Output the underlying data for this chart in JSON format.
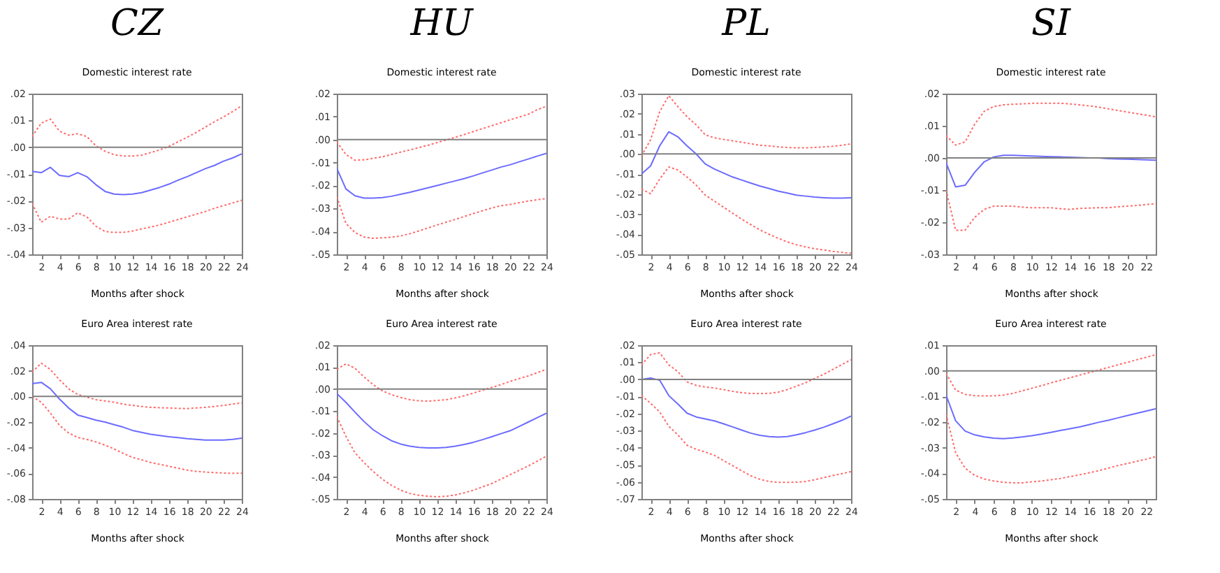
{
  "chart_data": [
    {
      "type": "line",
      "title": "CZ",
      "subtitle": "Domestic interest rate",
      "xlabel": "Months after shock",
      "x": [
        1,
        2,
        3,
        4,
        5,
        6,
        7,
        8,
        9,
        10,
        11,
        12,
        13,
        14,
        15,
        16,
        17,
        18,
        19,
        20,
        21,
        22,
        23,
        24
      ],
      "xlim": [
        1,
        24
      ],
      "xticks": [
        2,
        4,
        6,
        8,
        10,
        12,
        14,
        16,
        18,
        20,
        22,
        24
      ],
      "ylim": [
        -0.04,
        0.02
      ],
      "yticks": [
        {
          "value": -0.04,
          "label": "-.04"
        },
        {
          "value": -0.03,
          "label": "-.03"
        },
        {
          "value": -0.02,
          "label": "-.02"
        },
        {
          "value": -0.01,
          "label": "-.01"
        },
        {
          "value": 0,
          "label": ".00"
        },
        {
          "value": 0.01,
          "label": ".01"
        },
        {
          "value": 0.02,
          "label": ".02"
        }
      ],
      "grid": false,
      "ref_lines": [
        {
          "axis": "y",
          "value": 0,
          "color": "#808080"
        }
      ],
      "series": [
        {
          "color": "#ff6b6b",
          "line_style": "dotted",
          "values": [
            0.004,
            0.009,
            0.0105,
            0.006,
            0.0045,
            0.005,
            0.004,
            0.0005,
            -0.0015,
            -0.0028,
            -0.0033,
            -0.0033,
            -0.003,
            -0.002,
            -0.001,
            0.0003,
            0.002,
            0.0037,
            0.0055,
            0.0075,
            0.0095,
            0.0113,
            0.0133,
            0.0155
          ]
        },
        {
          "color": "#6b6bff",
          "line_style": "solid",
          "values": [
            -0.009,
            -0.0095,
            -0.0075,
            -0.0105,
            -0.011,
            -0.0095,
            -0.011,
            -0.014,
            -0.0165,
            -0.0175,
            -0.0177,
            -0.0175,
            -0.017,
            -0.016,
            -0.015,
            -0.0138,
            -0.0123,
            -0.011,
            -0.0095,
            -0.008,
            -0.0068,
            -0.0052,
            -0.004,
            -0.0025
          ]
        },
        {
          "color": "#ff6b6b",
          "line_style": "dotted",
          "values": [
            -0.021,
            -0.028,
            -0.0258,
            -0.0268,
            -0.0268,
            -0.0245,
            -0.026,
            -0.0295,
            -0.0315,
            -0.0318,
            -0.0318,
            -0.0313,
            -0.0305,
            -0.0298,
            -0.029,
            -0.028,
            -0.027,
            -0.026,
            -0.025,
            -0.024,
            -0.0228,
            -0.0218,
            -0.0208,
            -0.0198
          ]
        }
      ]
    },
    {
      "type": "line",
      "title": "HU",
      "subtitle": "Domestic interest rate",
      "xlabel": "Months after shock",
      "x": [
        1,
        2,
        3,
        4,
        5,
        6,
        7,
        8,
        9,
        10,
        11,
        12,
        13,
        14,
        15,
        16,
        17,
        18,
        19,
        20,
        21,
        22,
        23,
        24
      ],
      "xlim": [
        1,
        24
      ],
      "xticks": [
        2,
        4,
        6,
        8,
        10,
        12,
        14,
        16,
        18,
        20,
        22,
        24
      ],
      "ylim": [
        -0.05,
        0.02
      ],
      "yticks": [
        {
          "value": -0.05,
          "label": "-.05"
        },
        {
          "value": -0.04,
          "label": "-.04"
        },
        {
          "value": -0.03,
          "label": "-.03"
        },
        {
          "value": -0.02,
          "label": "-.02"
        },
        {
          "value": -0.01,
          "label": "-.01"
        },
        {
          "value": 0,
          "label": ".00"
        },
        {
          "value": 0.01,
          "label": ".01"
        },
        {
          "value": 0.02,
          "label": ".02"
        }
      ],
      "grid": false,
      "ref_lines": [
        {
          "axis": "y",
          "value": 0,
          "color": "#808080"
        }
      ],
      "series": [
        {
          "color": "#ff6b6b",
          "line_style": "dotted",
          "values": [
            -0.001,
            -0.0065,
            -0.009,
            -0.0088,
            -0.0082,
            -0.0075,
            -0.0065,
            -0.0055,
            -0.0045,
            -0.0035,
            -0.0025,
            -0.0013,
            -0.0002,
            0.001,
            0.0022,
            0.0035,
            0.0048,
            0.006,
            0.0073,
            0.0086,
            0.0098,
            0.011,
            0.013,
            0.0145
          ]
        },
        {
          "color": "#6b6bff",
          "line_style": "solid",
          "values": [
            -0.0125,
            -0.0215,
            -0.0245,
            -0.0255,
            -0.0255,
            -0.0253,
            -0.0247,
            -0.0238,
            -0.023,
            -0.022,
            -0.021,
            -0.02,
            -0.019,
            -0.018,
            -0.017,
            -0.0158,
            -0.0145,
            -0.0133,
            -0.012,
            -0.011,
            -0.0097,
            -0.0085,
            -0.0072,
            -0.006
          ]
        },
        {
          "color": "#ff6b6b",
          "line_style": "dotted",
          "values": [
            -0.025,
            -0.0365,
            -0.0405,
            -0.0425,
            -0.043,
            -0.0428,
            -0.0425,
            -0.042,
            -0.041,
            -0.0398,
            -0.0385,
            -0.0372,
            -0.036,
            -0.0348,
            -0.0335,
            -0.0322,
            -0.031,
            -0.0298,
            -0.0288,
            -0.0283,
            -0.0275,
            -0.0268,
            -0.0262,
            -0.0257
          ]
        }
      ]
    },
    {
      "type": "line",
      "title": "PL",
      "subtitle": "Domestic interest rate",
      "xlabel": "Months after shock",
      "x": [
        1,
        2,
        3,
        4,
        5,
        6,
        7,
        8,
        9,
        10,
        11,
        12,
        13,
        14,
        15,
        16,
        17,
        18,
        19,
        20,
        21,
        22,
        23,
        24
      ],
      "xlim": [
        1,
        24
      ],
      "xticks": [
        2,
        4,
        6,
        8,
        10,
        12,
        14,
        16,
        18,
        20,
        22,
        24
      ],
      "ylim": [
        -0.05,
        0.03
      ],
      "yticks": [
        {
          "value": -0.05,
          "label": "-.05"
        },
        {
          "value": -0.04,
          "label": "-.04"
        },
        {
          "value": -0.03,
          "label": "-.03"
        },
        {
          "value": -0.02,
          "label": "-.02"
        },
        {
          "value": -0.01,
          "label": "-.01"
        },
        {
          "value": 0,
          "label": ".00"
        },
        {
          "value": 0.01,
          "label": ".01"
        },
        {
          "value": 0.02,
          "label": ".02"
        },
        {
          "value": 0.03,
          "label": ".03"
        }
      ],
      "grid": false,
      "ref_lines": [
        {
          "axis": "y",
          "value": 0,
          "color": "#808080"
        }
      ],
      "series": [
        {
          "color": "#ff6b6b",
          "line_style": "dotted",
          "values": [
            -0.001,
            0.007,
            0.021,
            0.029,
            0.0235,
            0.0185,
            0.0145,
            0.0095,
            0.008,
            0.0072,
            0.0065,
            0.0058,
            0.005,
            0.0043,
            0.004,
            0.0035,
            0.0032,
            0.003,
            0.003,
            0.0032,
            0.0035,
            0.0038,
            0.0043,
            0.005
          ]
        },
        {
          "color": "#6b6bff",
          "line_style": "solid",
          "values": [
            -0.01,
            -0.006,
            0.004,
            0.011,
            0.0085,
            0.004,
            0.0,
            -0.005,
            -0.0075,
            -0.0095,
            -0.0115,
            -0.013,
            -0.0145,
            -0.016,
            -0.0172,
            -0.0185,
            -0.0195,
            -0.0205,
            -0.021,
            -0.0215,
            -0.0218,
            -0.022,
            -0.022,
            -0.0218
          ]
        },
        {
          "color": "#ff6b6b",
          "line_style": "dotted",
          "values": [
            -0.0175,
            -0.0198,
            -0.0125,
            -0.0065,
            -0.008,
            -0.0115,
            -0.0155,
            -0.0205,
            -0.0235,
            -0.0265,
            -0.0295,
            -0.0325,
            -0.0352,
            -0.0378,
            -0.04,
            -0.042,
            -0.0438,
            -0.0452,
            -0.0463,
            -0.0472,
            -0.0478,
            -0.0485,
            -0.049,
            -0.0495
          ]
        }
      ]
    },
    {
      "type": "line",
      "title": "SI",
      "subtitle": "Domestic interest rate",
      "xlabel": "Months after shock",
      "x": [
        1,
        2,
        3,
        4,
        5,
        6,
        7,
        8,
        9,
        10,
        11,
        12,
        13,
        14,
        15,
        16,
        17,
        18,
        19,
        20,
        21,
        22,
        23
      ],
      "xlim": [
        1,
        23
      ],
      "xticks": [
        2,
        4,
        6,
        8,
        10,
        12,
        14,
        16,
        18,
        20,
        22
      ],
      "ylim": [
        -0.03,
        0.02
      ],
      "yticks": [
        {
          "value": -0.03,
          "label": "-.03"
        },
        {
          "value": -0.02,
          "label": "-.02"
        },
        {
          "value": -0.01,
          "label": "-.01"
        },
        {
          "value": 0,
          "label": ".00"
        },
        {
          "value": 0.01,
          "label": ".01"
        },
        {
          "value": 0.02,
          "label": ".02"
        }
      ],
      "grid": false,
      "ref_lines": [
        {
          "axis": "y",
          "value": 0,
          "color": "#808080"
        }
      ],
      "series": [
        {
          "color": "#ff6b6b",
          "line_style": "dotted",
          "values": [
            0.007,
            0.004,
            0.005,
            0.0105,
            0.0145,
            0.016,
            0.0165,
            0.0167,
            0.0168,
            0.017,
            0.017,
            0.017,
            0.017,
            0.0168,
            0.0165,
            0.0162,
            0.0158,
            0.0153,
            0.0148,
            0.0143,
            0.0138,
            0.0133,
            0.0128
          ]
        },
        {
          "color": "#6b6bff",
          "line_style": "solid",
          "values": [
            -0.0015,
            -0.009,
            -0.0085,
            -0.0045,
            -0.0012,
            0.0003,
            0.0008,
            0.0008,
            0.0007,
            0.0006,
            0.0005,
            0.0004,
            0.0003,
            0.0002,
            0.0001,
            0.0,
            0.0,
            -0.0002,
            -0.0003,
            -0.0004,
            -0.0005,
            -0.0006,
            -0.0007
          ]
        },
        {
          "color": "#ff6b6b",
          "line_style": "dotted",
          "values": [
            -0.01,
            -0.0225,
            -0.0225,
            -0.0185,
            -0.016,
            -0.015,
            -0.015,
            -0.015,
            -0.0153,
            -0.0155,
            -0.0155,
            -0.0155,
            -0.0158,
            -0.016,
            -0.0157,
            -0.0156,
            -0.0155,
            -0.0155,
            -0.0152,
            -0.015,
            -0.0148,
            -0.0145,
            -0.0142
          ]
        }
      ]
    },
    {
      "type": "line",
      "title": "Euro Area interest rate",
      "xlabel": "Months after shock",
      "x": [
        1,
        2,
        3,
        4,
        5,
        6,
        7,
        8,
        9,
        10,
        11,
        12,
        13,
        14,
        15,
        16,
        17,
        18,
        19,
        20,
        21,
        22,
        23,
        24
      ],
      "xlim": [
        1,
        24
      ],
      "xticks": [
        2,
        4,
        6,
        8,
        10,
        12,
        14,
        16,
        18,
        20,
        22,
        24
      ],
      "ylim": [
        -0.08,
        0.04
      ],
      "yticks": [
        {
          "value": -0.08,
          "label": "-.08"
        },
        {
          "value": -0.06,
          "label": "-.06"
        },
        {
          "value": -0.04,
          "label": "-.04"
        },
        {
          "value": -0.02,
          "label": "-.02"
        },
        {
          "value": 0,
          "label": ".00"
        },
        {
          "value": 0.02,
          "label": ".02"
        },
        {
          "value": 0.04,
          "label": ".04"
        }
      ],
      "grid": false,
      "ref_lines": [
        {
          "axis": "y",
          "value": 0,
          "color": "#808080"
        }
      ],
      "series": [
        {
          "color": "#ff6b6b",
          "line_style": "dotted",
          "values": [
            0.019,
            0.026,
            0.021,
            0.013,
            0.006,
            0.0015,
            -0.0005,
            -0.0025,
            -0.0035,
            -0.0045,
            -0.006,
            -0.007,
            -0.0078,
            -0.0085,
            -0.0088,
            -0.009,
            -0.0093,
            -0.0095,
            -0.009,
            -0.0085,
            -0.0078,
            -0.007,
            -0.006,
            -0.005
          ]
        },
        {
          "color": "#6b6bff",
          "line_style": "solid",
          "values": [
            0.01,
            0.011,
            0.006,
            -0.002,
            -0.009,
            -0.0145,
            -0.0165,
            -0.0185,
            -0.02,
            -0.022,
            -0.024,
            -0.0265,
            -0.028,
            -0.0295,
            -0.0305,
            -0.0315,
            -0.0322,
            -0.033,
            -0.0335,
            -0.034,
            -0.034,
            -0.034,
            -0.0335,
            -0.0325
          ]
        },
        {
          "color": "#ff6b6b",
          "line_style": "dotted",
          "values": [
            0.0,
            -0.0045,
            -0.013,
            -0.0225,
            -0.0285,
            -0.032,
            -0.0335,
            -0.0355,
            -0.038,
            -0.041,
            -0.0445,
            -0.0475,
            -0.0495,
            -0.0515,
            -0.053,
            -0.0545,
            -0.056,
            -0.0575,
            -0.0585,
            -0.059,
            -0.0595,
            -0.0598,
            -0.06,
            -0.06
          ]
        }
      ]
    },
    {
      "type": "line",
      "title": "Euro Area interest rate",
      "xlabel": "Months after shock",
      "x": [
        1,
        2,
        3,
        4,
        5,
        6,
        7,
        8,
        9,
        10,
        11,
        12,
        13,
        14,
        15,
        16,
        17,
        18,
        19,
        20,
        21,
        22,
        23,
        24
      ],
      "xlim": [
        1,
        24
      ],
      "xticks": [
        2,
        4,
        6,
        8,
        10,
        12,
        14,
        16,
        18,
        20,
        22,
        24
      ],
      "ylim": [
        -0.05,
        0.02
      ],
      "yticks": [
        {
          "value": -0.05,
          "label": "-.05"
        },
        {
          "value": -0.04,
          "label": "-.04"
        },
        {
          "value": -0.03,
          "label": "-.03"
        },
        {
          "value": -0.02,
          "label": "-.02"
        },
        {
          "value": -0.01,
          "label": "-.01"
        },
        {
          "value": 0,
          "label": ".00"
        },
        {
          "value": 0.01,
          "label": ".01"
        },
        {
          "value": 0.02,
          "label": ".02"
        }
      ],
      "grid": false,
      "ref_lines": [
        {
          "axis": "y",
          "value": 0,
          "color": "#808080"
        }
      ],
      "series": [
        {
          "color": "#ff6b6b",
          "line_style": "dotted",
          "values": [
            0.009,
            0.0115,
            0.0095,
            0.0055,
            0.002,
            -0.0008,
            -0.0025,
            -0.0038,
            -0.0048,
            -0.0053,
            -0.0055,
            -0.0052,
            -0.0048,
            -0.004,
            -0.003,
            -0.0018,
            -0.0005,
            0.0008,
            0.002,
            0.0035,
            0.0048,
            0.006,
            0.0075,
            0.009
          ]
        },
        {
          "color": "#6b6bff",
          "line_style": "solid",
          "values": [
            -0.002,
            -0.006,
            -0.0105,
            -0.0148,
            -0.0185,
            -0.0212,
            -0.0235,
            -0.025,
            -0.026,
            -0.0265,
            -0.0268,
            -0.0268,
            -0.0265,
            -0.026,
            -0.0252,
            -0.0242,
            -0.023,
            -0.0217,
            -0.0203,
            -0.019,
            -0.017,
            -0.015,
            -0.013,
            -0.011
          ]
        },
        {
          "color": "#ff6b6b",
          "line_style": "dotted",
          "values": [
            -0.0125,
            -0.0215,
            -0.029,
            -0.0335,
            -0.0375,
            -0.041,
            -0.0438,
            -0.046,
            -0.0475,
            -0.0483,
            -0.0488,
            -0.049,
            -0.0488,
            -0.0482,
            -0.0472,
            -0.046,
            -0.0445,
            -0.043,
            -0.041,
            -0.039,
            -0.037,
            -0.035,
            -0.0328,
            -0.0305
          ]
        }
      ]
    },
    {
      "type": "line",
      "title": "Euro Area interest rate",
      "xlabel": "Months after shock",
      "x": [
        1,
        2,
        3,
        4,
        5,
        6,
        7,
        8,
        9,
        10,
        11,
        12,
        13,
        14,
        15,
        16,
        17,
        18,
        19,
        20,
        21,
        22,
        23,
        24
      ],
      "xlim": [
        1,
        24
      ],
      "xticks": [
        2,
        4,
        6,
        8,
        10,
        12,
        14,
        16,
        18,
        20,
        22,
        24
      ],
      "ylim": [
        -0.07,
        0.02
      ],
      "yticks": [
        {
          "value": -0.07,
          "label": "-.07"
        },
        {
          "value": -0.06,
          "label": "-.06"
        },
        {
          "value": -0.05,
          "label": "-.05"
        },
        {
          "value": -0.04,
          "label": "-.04"
        },
        {
          "value": -0.03,
          "label": "-.03"
        },
        {
          "value": -0.02,
          "label": "-.02"
        },
        {
          "value": -0.01,
          "label": "-.01"
        },
        {
          "value": 0,
          "label": ".00"
        },
        {
          "value": 0.01,
          "label": ".01"
        },
        {
          "value": 0.02,
          "label": ".02"
        }
      ],
      "grid": false,
      "ref_lines": [
        {
          "axis": "y",
          "value": 0,
          "color": "#808080"
        }
      ],
      "series": [
        {
          "color": "#ff6b6b",
          "line_style": "dotted",
          "values": [
            0.0085,
            0.0145,
            0.0155,
            0.0085,
            0.0045,
            -0.0015,
            -0.0035,
            -0.0045,
            -0.005,
            -0.006,
            -0.007,
            -0.0078,
            -0.0082,
            -0.0083,
            -0.0082,
            -0.0075,
            -0.006,
            -0.004,
            -0.002,
            0.0005,
            0.003,
            0.0058,
            0.0087,
            0.0115
          ]
        },
        {
          "color": "#6b6bff",
          "line_style": "solid",
          "values": [
            0.0,
            0.0008,
            -0.0005,
            -0.0095,
            -0.0145,
            -0.0198,
            -0.022,
            -0.0232,
            -0.0243,
            -0.026,
            -0.0278,
            -0.0297,
            -0.0315,
            -0.0328,
            -0.0335,
            -0.0338,
            -0.0335,
            -0.0325,
            -0.0312,
            -0.0297,
            -0.028,
            -0.026,
            -0.024,
            -0.0215
          ]
        },
        {
          "color": "#ff6b6b",
          "line_style": "dotted",
          "values": [
            -0.0095,
            -0.014,
            -0.019,
            -0.0275,
            -0.0325,
            -0.0385,
            -0.041,
            -0.0425,
            -0.0445,
            -0.0475,
            -0.0505,
            -0.0535,
            -0.0565,
            -0.0585,
            -0.0598,
            -0.0603,
            -0.0603,
            -0.0602,
            -0.0598,
            -0.0588,
            -0.0575,
            -0.0563,
            -0.0552,
            -0.054
          ]
        }
      ]
    },
    {
      "type": "line",
      "title": "Euro Area interest rate",
      "xlabel": "Months after shock",
      "x": [
        1,
        2,
        3,
        4,
        5,
        6,
        7,
        8,
        9,
        10,
        11,
        12,
        13,
        14,
        15,
        16,
        17,
        18,
        19,
        20,
        21,
        22,
        23
      ],
      "xlim": [
        1,
        23
      ],
      "xticks": [
        2,
        4,
        6,
        8,
        10,
        12,
        14,
        16,
        18,
        20,
        22
      ],
      "ylim": [
        -0.05,
        0.01
      ],
      "yticks": [
        {
          "value": -0.05,
          "label": "-.05"
        },
        {
          "value": -0.04,
          "label": "-.04"
        },
        {
          "value": -0.03,
          "label": "-.03"
        },
        {
          "value": -0.02,
          "label": "-.02"
        },
        {
          "value": -0.01,
          "label": "-.01"
        },
        {
          "value": 0,
          "label": ".00"
        },
        {
          "value": 0.01,
          "label": ".01"
        }
      ],
      "grid": false,
      "ref_lines": [
        {
          "axis": "y",
          "value": 0,
          "color": "#808080"
        }
      ],
      "series": [
        {
          "color": "#ff6b6b",
          "line_style": "dotted",
          "values": [
            -0.001,
            -0.0075,
            -0.0092,
            -0.0097,
            -0.0098,
            -0.0098,
            -0.0095,
            -0.0088,
            -0.0078,
            -0.0068,
            -0.0058,
            -0.0047,
            -0.0037,
            -0.0027,
            -0.0017,
            -0.0007,
            0.0003,
            0.0013,
            0.0023,
            0.0033,
            0.0043,
            0.0053,
            0.0063
          ]
        },
        {
          "color": "#6b6bff",
          "line_style": "solid",
          "values": [
            -0.0095,
            -0.0195,
            -0.0235,
            -0.025,
            -0.0258,
            -0.0263,
            -0.0265,
            -0.0262,
            -0.0258,
            -0.0253,
            -0.0247,
            -0.024,
            -0.0233,
            -0.0226,
            -0.0219,
            -0.021,
            -0.0201,
            -0.0193,
            -0.0184,
            -0.0175,
            -0.0166,
            -0.0157,
            -0.0148
          ]
        },
        {
          "color": "#ff6b6b",
          "line_style": "dotted",
          "values": [
            -0.017,
            -0.032,
            -0.038,
            -0.0408,
            -0.0422,
            -0.043,
            -0.0435,
            -0.0437,
            -0.0437,
            -0.0433,
            -0.043,
            -0.0425,
            -0.042,
            -0.0413,
            -0.0406,
            -0.0398,
            -0.039,
            -0.038,
            -0.037,
            -0.0362,
            -0.0353,
            -0.0345,
            -0.0335
          ]
        }
      ]
    }
  ]
}
